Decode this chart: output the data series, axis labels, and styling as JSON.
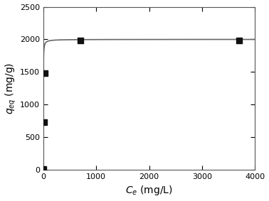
{
  "data_points_x": [
    2,
    15,
    30,
    700,
    3700
  ],
  "data_points_y": [
    10,
    730,
    1480,
    1980,
    1980
  ],
  "langmuir_qmax": 2000,
  "langmuir_KL": 0.8,
  "xlim": [
    0,
    4000
  ],
  "ylim": [
    0,
    2500
  ],
  "xticks": [
    0,
    1000,
    2000,
    3000,
    4000
  ],
  "yticks": [
    0,
    500,
    1000,
    1500,
    2000,
    2500
  ],
  "xlabel": "$C_e$ (mg/L)",
  "ylabel": "$q_{eq}$ (mg/g)",
  "line_color": "#666666",
  "marker_color": "#111111",
  "marker_size": 30,
  "line_width": 1.2,
  "background_color": "#ffffff",
  "tick_fontsize": 8,
  "label_fontsize": 10
}
